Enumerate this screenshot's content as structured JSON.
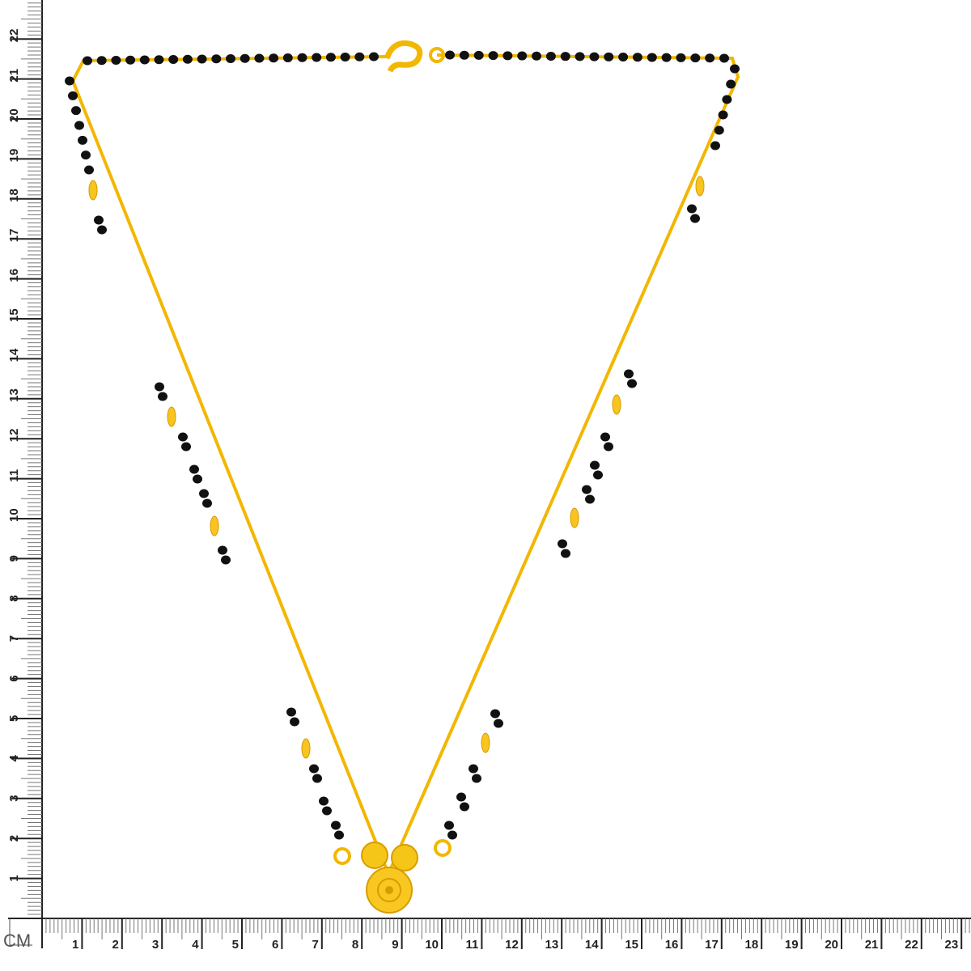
{
  "ruler": {
    "unit": "CM",
    "horizontal_labels": [
      "1",
      "2",
      "3",
      "4",
      "5",
      "6",
      "7",
      "8",
      "9",
      "10",
      "11",
      "12",
      "13",
      "14",
      "15",
      "16",
      "17",
      "18",
      "19",
      "20",
      "21",
      "22",
      "23"
    ],
    "vertical_labels": [
      "1",
      "2",
      "3",
      "4",
      "5",
      "6",
      "7",
      "8",
      "9",
      "10",
      "11",
      "12",
      "13",
      "14",
      "15",
      "16",
      "17",
      "18",
      "19",
      "20",
      "21",
      "22"
    ],
    "color": "#222222"
  },
  "product": {
    "subject": "gold chain with black beads and round gold pendant",
    "gold_color": "#f2b700",
    "bead_color": "#111111"
  }
}
